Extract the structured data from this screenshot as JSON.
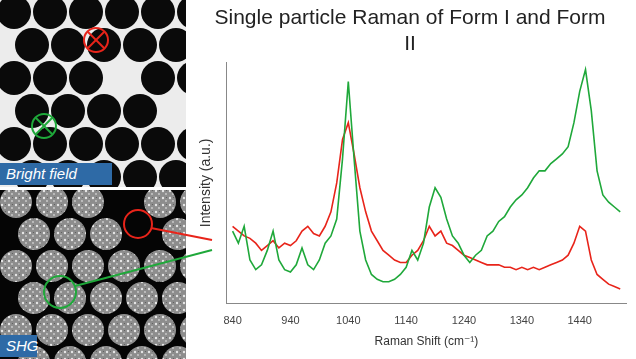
{
  "chart_data": {
    "type": "line",
    "title": "Single particle Raman of Form I and Form II",
    "xlabel": "Raman Shift (cm⁻¹)",
    "ylabel": "Intensity (a.u.)",
    "x": [
      840,
      850,
      860,
      870,
      880,
      890,
      900,
      910,
      920,
      930,
      940,
      950,
      960,
      970,
      980,
      990,
      1000,
      1010,
      1020,
      1030,
      1040,
      1050,
      1060,
      1070,
      1080,
      1090,
      1100,
      1110,
      1120,
      1130,
      1140,
      1150,
      1160,
      1170,
      1180,
      1190,
      1200,
      1210,
      1220,
      1230,
      1240,
      1250,
      1260,
      1270,
      1280,
      1290,
      1300,
      1310,
      1320,
      1330,
      1340,
      1350,
      1360,
      1370,
      1380,
      1390,
      1400,
      1410,
      1420,
      1430,
      1440,
      1450,
      1460,
      1470,
      1480,
      1490,
      1500,
      1510
    ],
    "series": [
      {
        "color": "#1fa83a",
        "values": [
          30,
          25,
          32,
          18,
          14,
          16,
          22,
          30,
          18,
          14,
          13,
          16,
          23,
          16,
          14,
          18,
          25,
          28,
          35,
          60,
          92,
          60,
          30,
          18,
          12,
          10,
          9,
          9,
          10,
          12,
          15,
          22,
          18,
          25,
          40,
          48,
          44,
          35,
          28,
          25,
          20,
          17,
          20,
          22,
          28,
          30,
          34,
          36,
          40,
          43,
          45,
          48,
          52,
          55,
          55,
          58,
          60,
          62,
          65,
          75,
          88,
          97,
          80,
          55,
          45,
          42,
          40,
          38
        ]
      },
      {
        "color": "#e8241a",
        "values": [
          32,
          30,
          28,
          27,
          25,
          22,
          24,
          26,
          23,
          25,
          24,
          26,
          30,
          32,
          29,
          28,
          32,
          38,
          50,
          68,
          75,
          62,
          48,
          38,
          30,
          26,
          22,
          20,
          18,
          17,
          17,
          20,
          22,
          26,
          32,
          28,
          30,
          25,
          24,
          22,
          20,
          19,
          18,
          17,
          16,
          16,
          16,
          15,
          15,
          14,
          15,
          14,
          15,
          14,
          15,
          16,
          17,
          18,
          20,
          25,
          32,
          30,
          18,
          12,
          10,
          8,
          7,
          6
        ]
      }
    ],
    "xlim": [
      830,
      1520
    ],
    "xticks": [
      840,
      940,
      1040,
      1140,
      1240,
      1340,
      1440
    ],
    "ylim": [
      0,
      100
    ],
    "grid": false,
    "tick_labels": "x"
  },
  "panels": [
    {
      "label": "Bright field"
    },
    {
      "label": "SHG"
    }
  ]
}
